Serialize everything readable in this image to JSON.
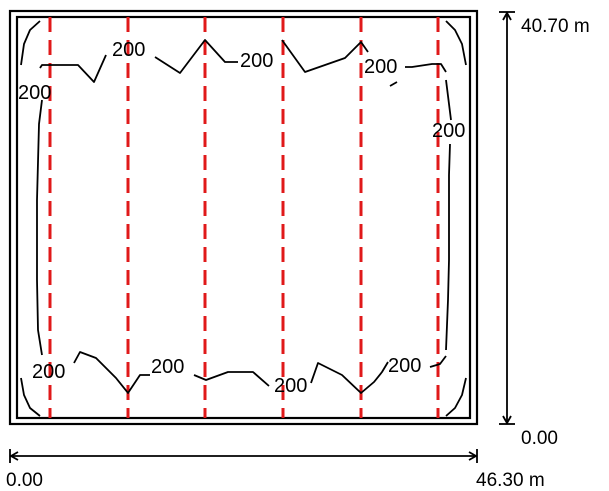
{
  "dimensions": {
    "height_top_label": "40.70 m",
    "height_bottom_label": "0.00",
    "width_left_label": "0.00",
    "width_right_label": "46.30 m"
  },
  "contour_value": "200",
  "contour_labels": [
    "200",
    "200",
    "200",
    "200",
    "200",
    "200",
    "200",
    "200",
    "200"
  ],
  "colors": {
    "lamp_lines": "#e0191a",
    "contour": "#000000",
    "frame": "#000000"
  },
  "lamp_rows": 6
}
